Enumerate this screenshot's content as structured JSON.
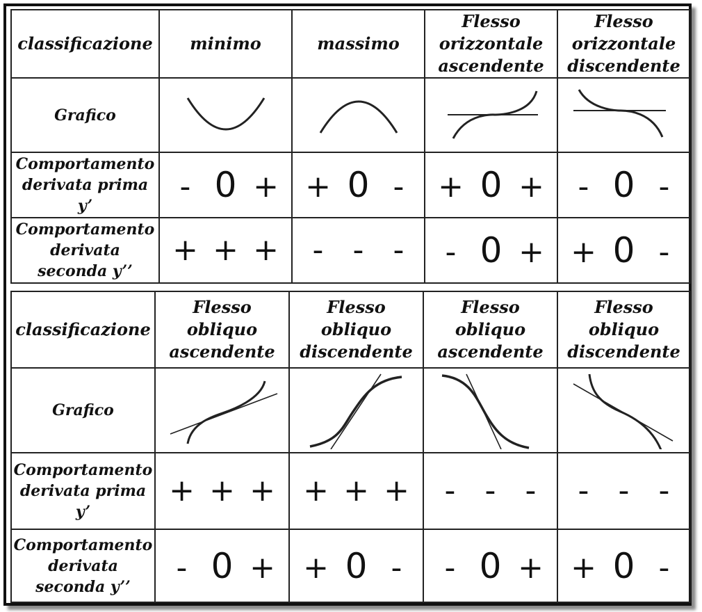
{
  "table1": {
    "header_label": "classificazione",
    "columns": [
      [
        "minimo"
      ],
      [
        "massimo"
      ],
      [
        "Flesso",
        "orizzontale",
        "ascendente"
      ],
      [
        "Flesso",
        "orizzontale",
        "discendente"
      ]
    ],
    "graph_label": "Grafico",
    "row_first": {
      "label": [
        "Comportamento",
        "derivata prima",
        "y’"
      ],
      "values": [
        [
          "-",
          "0",
          "+"
        ],
        [
          "+",
          "0",
          "-"
        ],
        [
          "+",
          "0",
          "+"
        ],
        [
          "-",
          "0",
          "-"
        ]
      ]
    },
    "row_second": {
      "label": [
        "Comportamento",
        "derivata",
        "seconda y’’"
      ],
      "values": [
        [
          "+",
          "+",
          "+"
        ],
        [
          "-",
          "-",
          "-"
        ],
        [
          "-",
          "0",
          "+"
        ],
        [
          "+",
          "0",
          "-"
        ]
      ]
    }
  },
  "table2": {
    "header_label": "classificazione",
    "columns": [
      [
        "Flesso",
        "obliquo",
        "ascendente"
      ],
      [
        "Flesso",
        "obliquo",
        "discendente"
      ],
      [
        "Flesso",
        "obliquo",
        "ascendente"
      ],
      [
        "Flesso",
        "obliquo",
        "discendente"
      ]
    ],
    "graph_label": "Grafico",
    "row_first": {
      "label": [
        "Comportamento",
        "derivata prima",
        "y’"
      ],
      "values": [
        [
          "+",
          "+",
          "+"
        ],
        [
          "+",
          "+",
          "+"
        ],
        [
          "-",
          "-",
          "-"
        ],
        [
          "-",
          "-",
          "-"
        ]
      ]
    },
    "row_second": {
      "label": [
        "Comportamento",
        "derivata",
        "seconda y’’"
      ],
      "values": [
        [
          "-",
          "0",
          "+"
        ],
        [
          "+",
          "0",
          "-"
        ],
        [
          "-",
          "0",
          "+"
        ],
        [
          "+",
          "0",
          "-"
        ]
      ]
    }
  },
  "graph_icons": [
    "minimum-curve-icon",
    "maximum-curve-icon",
    "horizontal-ascending-inflection-icon",
    "horizontal-descending-inflection-icon",
    "oblique-inflection-icon"
  ]
}
